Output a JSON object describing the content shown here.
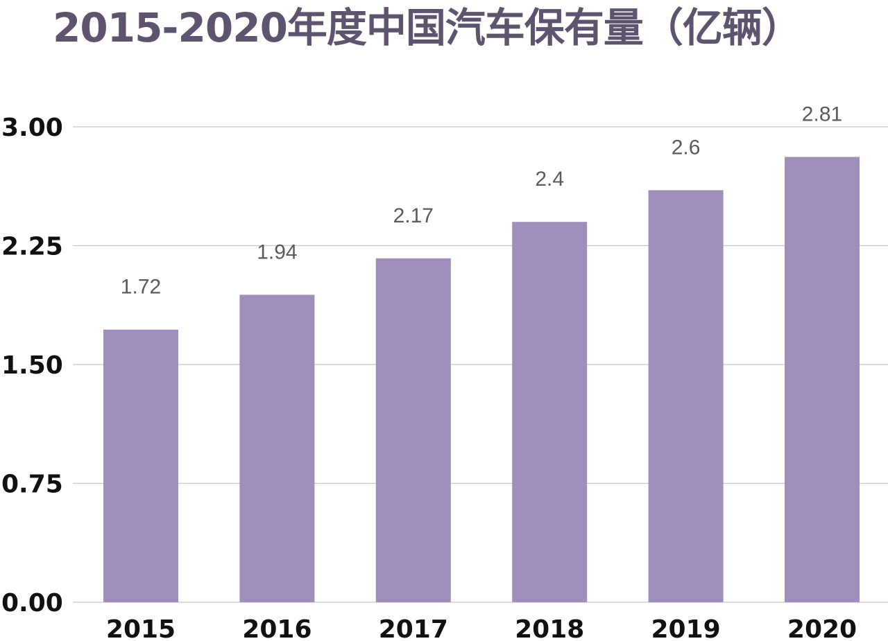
{
  "colors": {
    "title": "#5e5470",
    "bar": "#a08fbd",
    "grid": "#c8c8c8",
    "tick_text": "#111111",
    "data_label": "#5a5a5a"
  },
  "chart_data": {
    "type": "bar",
    "title": "2015-2020年度中国汽车保有量（亿辆）",
    "xlabel": "",
    "ylabel": "",
    "categories": [
      "2015",
      "2016",
      "2017",
      "2018",
      "2019",
      "2020"
    ],
    "values": [
      1.72,
      1.94,
      2.17,
      2.4,
      2.6,
      2.81
    ],
    "value_labels": [
      "1.72",
      "1.94",
      "2.17",
      "2.4",
      "2.6",
      "2.81"
    ],
    "ylim": [
      0,
      3
    ],
    "yticks": [
      0,
      0.75,
      1.5,
      2.25,
      3
    ],
    "ytick_labels": [
      "0.00",
      "0.75",
      "1.50",
      "2.25",
      "3.00"
    ],
    "grid": true,
    "legend": "none"
  }
}
